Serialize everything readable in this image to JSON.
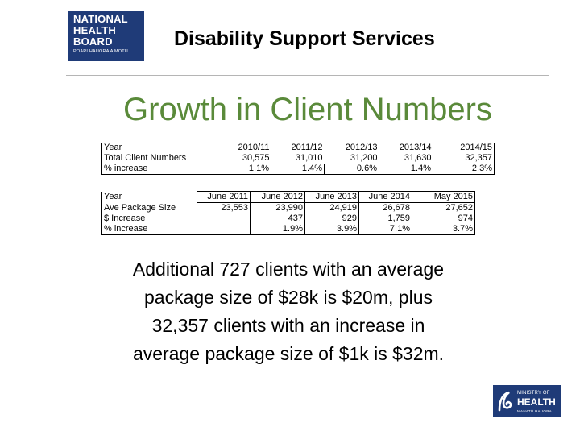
{
  "header": {
    "logo_lines": [
      "NATIONAL",
      "HEALTH",
      "BOARD"
    ],
    "logo_subtitle": "POARI HAUORA A MOTU",
    "title": "Disability Support Services"
  },
  "slide_title": "Growth in Client Numbers",
  "table1": {
    "columns": [
      "Year",
      "2010/11",
      "2011/12",
      "2012/13",
      "2013/14",
      "2014/15"
    ],
    "rows": [
      [
        "Total Client Numbers",
        "30,575",
        "31,010",
        "31,200",
        "31,630",
        "32,357"
      ],
      [
        "% increase",
        "1.1%",
        "1.4%",
        "0.6%",
        "1.4%",
        "2.3%"
      ]
    ]
  },
  "table2": {
    "columns": [
      "Year",
      "June 2011",
      "June 2012",
      "June 2013",
      "June 2014",
      "May 2015"
    ],
    "rows": [
      [
        "Ave Package Size",
        "23,553",
        "23,990",
        "24,919",
        "26,678",
        "27,652"
      ],
      [
        "$ Increase",
        "",
        "437",
        "929",
        "1,759",
        "974"
      ],
      [
        "% increase",
        "",
        "1.9%",
        "3.9%",
        "7.1%",
        "3.7%"
      ]
    ]
  },
  "body_lines": [
    "Additional 727 clients with an average",
    "package size of $28k is $20m, plus",
    "32,357 clients with an increase in",
    "average package size of $1k is $32m."
  ],
  "footer_logo": {
    "small": "MINISTRY OF",
    "big": "HEALTH",
    "tagline": "MANATŪ HAUORA"
  },
  "colors": {
    "title_green": "#5a8a3a",
    "logo_blue": "#1f3b78"
  }
}
